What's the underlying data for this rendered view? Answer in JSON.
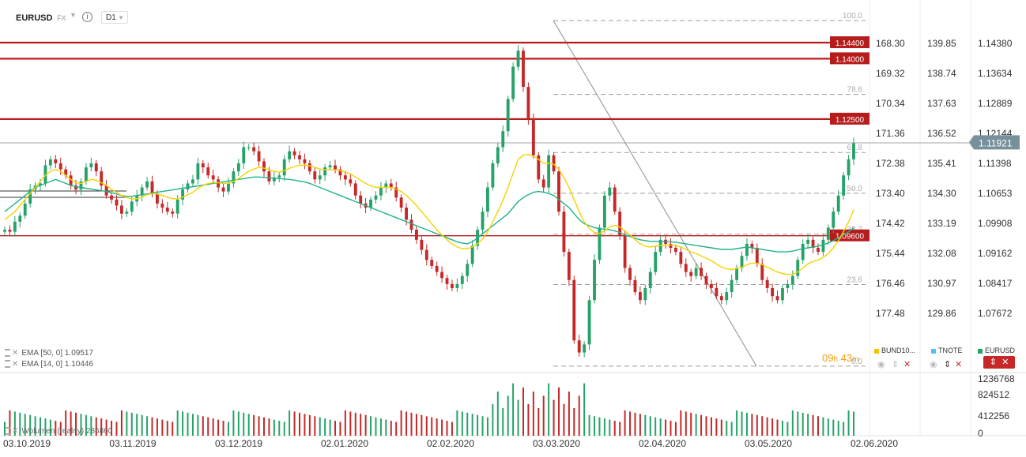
{
  "header": {
    "ticker": "EURUSD",
    "asset_class": "FX",
    "info": "i",
    "timeframe": "D1"
  },
  "indicators": [
    {
      "label": "EMA [50, 0] 1.09517"
    },
    {
      "label": "EMA [14, 0] 1.10446"
    }
  ],
  "volume_label": "Wolumen (realny) 286860",
  "timer": {
    "hours": "09",
    "h": "h",
    "minutes": "43",
    "m": "m"
  },
  "legend": [
    {
      "name": "BUND10...",
      "color": "#f5c400"
    },
    {
      "name": "TNOTE",
      "color": "#4fc3f7"
    },
    {
      "name": "EURUSD",
      "color": "#26a269"
    }
  ],
  "colors": {
    "up": "#26a269",
    "down": "#c62828",
    "ema_fast": "#f5d300",
    "ema_slow": "#20b28a",
    "hline": "#b71c1c",
    "fib": "#9e9e9e",
    "axis_text": "#333333"
  },
  "chart_data": {
    "type": "candlestick",
    "x_ticks": [
      "03.10.2019",
      "03.11.2019",
      "03.12.2019",
      "02.01.2020",
      "02.02.2020",
      "03.03.2020",
      "02.04.2020",
      "03.05.2020",
      "02.06.2020"
    ],
    "y_axis_bund": [
      "168.30",
      "169.32",
      "170.34",
      "171.36",
      "172.38",
      "173.40",
      "174.42",
      "175.44",
      "176.46",
      "177.48"
    ],
    "y_axis_tnote": [
      "139.85",
      "138.74",
      "137.63",
      "136.52",
      "135.41",
      "134.30",
      "133.19",
      "132.08",
      "130.97",
      "129.86"
    ],
    "y_axis_eurusd": [
      1.1438,
      1.13634,
      1.12889,
      1.12144,
      1.11398,
      1.10653,
      1.09908,
      1.09162,
      1.08417,
      1.07672
    ],
    "y_axis_eurusd_labels": [
      "1.14380",
      "1.13634",
      "1.12889",
      "1.12144",
      "1.11398",
      "1.10653",
      "1.09908",
      "1.09162",
      "1.08417",
      "1.07672"
    ],
    "current_price": "1.11921",
    "current_price_value": 1.11921,
    "horizontal_levels": [
      {
        "label": "1.14400",
        "value": 1.144
      },
      {
        "label": "1.14000",
        "value": 1.14
      },
      {
        "label": "1.12500",
        "value": 1.125
      },
      {
        "label": "1.09600",
        "value": 1.096
      }
    ],
    "fib_high": 1.1495,
    "fib_low": 1.0636,
    "fib_levels": [
      {
        "label": "100.0",
        "ratio": 1.0
      },
      {
        "label": "78.6",
        "ratio": 0.786
      },
      {
        "label": "61.8",
        "ratio": 0.618
      },
      {
        "label": "50.0",
        "ratio": 0.5
      },
      {
        "label": "38.2",
        "ratio": 0.382
      },
      {
        "label": "23.6",
        "ratio": 0.236
      },
      {
        "label": "0.0",
        "ratio": 0.0
      }
    ],
    "volume_axis": [
      "1236768",
      "824512",
      "412256",
      "0"
    ],
    "volume_axis_values": [
      1236768,
      824512,
      412256,
      0
    ],
    "closes": [
      1.0975,
      1.097,
      1.0995,
      1.101,
      1.104,
      1.1075,
      1.1085,
      1.109,
      1.1135,
      1.115,
      1.114,
      1.1125,
      1.111,
      1.1085,
      1.1075,
      1.1095,
      1.113,
      1.114,
      1.112,
      1.1085,
      1.106,
      1.105,
      1.1035,
      1.1015,
      1.102,
      1.1045,
      1.106,
      1.108,
      1.1095,
      1.1065,
      1.104,
      1.103,
      1.102,
      1.1015,
      1.105,
      1.1075,
      1.109,
      1.11,
      1.114,
      1.113,
      1.111,
      1.11,
      1.108,
      1.107,
      1.109,
      1.112,
      1.114,
      1.118,
      1.118,
      1.117,
      1.1145,
      1.112,
      1.1095,
      1.1105,
      1.111,
      1.115,
      1.117,
      1.116,
      1.115,
      1.114,
      1.112,
      1.11,
      1.111,
      1.113,
      1.1135,
      1.1125,
      1.111,
      1.11,
      1.109,
      1.106,
      1.104,
      1.103,
      1.105,
      1.106,
      1.108,
      1.109,
      1.108,
      1.1055,
      1.103,
      1.1,
      1.0975,
      1.095,
      1.0925,
      1.09,
      1.0885,
      1.087,
      1.0855,
      1.084,
      1.083,
      1.084,
      1.086,
      1.089,
      1.0935,
      1.0975,
      1.102,
      1.108,
      1.114,
      1.118,
      1.122,
      1.13,
      1.138,
      1.142,
      1.133,
      1.125,
      1.116,
      1.11,
      1.108,
      1.116,
      1.112,
      1.102,
      1.092,
      1.085,
      1.07,
      1.067,
      1.069,
      1.08,
      1.09,
      1.098,
      1.106,
      1.108,
      1.102,
      1.096,
      1.088,
      1.085,
      1.082,
      1.08,
      1.083,
      1.087,
      1.092,
      1.095,
      1.094,
      1.093,
      1.092,
      1.089,
      1.087,
      1.086,
      1.088,
      1.086,
      1.084,
      1.083,
      1.081,
      1.08,
      1.082,
      1.085,
      1.088,
      1.091,
      1.094,
      1.093,
      1.089,
      1.085,
      1.083,
      1.081,
      1.08,
      1.083,
      1.084,
      1.086,
      1.09,
      1.094,
      1.095,
      1.093,
      1.092,
      1.095,
      1.098,
      1.102,
      1.106,
      1.111,
      1.115,
      1.119
    ],
    "ema_slow": [
      1.102,
      1.103,
      1.104,
      1.105,
      1.106,
      1.107,
      1.108,
      1.1085,
      1.109,
      1.1095,
      1.11,
      1.1095,
      1.109,
      1.1085,
      1.1082,
      1.108,
      1.1078,
      1.1076,
      1.1074,
      1.1072,
      1.107,
      1.1067,
      1.1064,
      1.106,
      1.1058,
      1.1058,
      1.106,
      1.1062,
      1.1064,
      1.1066,
      1.1068,
      1.107,
      1.1072,
      1.1074,
      1.1076,
      1.1078,
      1.108,
      1.1082,
      1.1084,
      1.1086,
      1.1088,
      1.109,
      1.1092,
      1.1094,
      1.1096,
      1.1098,
      1.11,
      1.1102,
      1.1104,
      1.1106,
      1.1106,
      1.1105,
      1.1104,
      1.1103,
      1.1102,
      1.1101,
      1.11,
      1.1098,
      1.1096,
      1.1094,
      1.109,
      1.1085,
      1.108,
      1.1075,
      1.107,
      1.1065,
      1.106,
      1.1055,
      1.105,
      1.1045,
      1.104,
      1.1035,
      1.103,
      1.1025,
      1.102,
      1.1015,
      1.101,
      1.1005,
      1.1,
      1.0995,
      1.099,
      1.0985,
      1.098,
      1.0975,
      1.097,
      1.0965,
      1.096,
      1.0955,
      1.095,
      1.0945,
      1.0942,
      1.094,
      1.0945,
      1.0955,
      1.0965,
      1.0975,
      1.0985,
      1.0995,
      1.1005,
      1.1015,
      1.103,
      1.1045,
      1.1055,
      1.1062,
      1.1068,
      1.107,
      1.1068,
      1.1065,
      1.106,
      1.105,
      1.104,
      1.103,
      1.1015,
      1.1,
      1.099,
      1.0985,
      1.098,
      1.0978,
      1.0976,
      1.0975,
      1.0972,
      1.0968,
      1.0962,
      1.0958,
      1.0954,
      1.095,
      1.0948,
      1.0946,
      1.0946,
      1.0946,
      1.0946,
      1.0945,
      1.0944,
      1.0942,
      1.094,
      1.0938,
      1.0936,
      1.0934,
      1.0932,
      1.093,
      1.0928,
      1.0926,
      1.0926,
      1.0926,
      1.0928,
      1.093,
      1.0932,
      1.093,
      1.0928,
      1.0926,
      1.0924,
      1.0922,
      1.092,
      1.092,
      1.092,
      1.0922,
      1.0925,
      1.0928,
      1.093,
      1.0932,
      1.0934,
      1.0938,
      1.0942,
      1.0948,
      1.0955,
      1.0962,
      1.097,
      1.098
    ],
    "ema_fast": [
      1.1,
      1.101,
      1.102,
      1.1035,
      1.105,
      1.1065,
      1.108,
      1.1095,
      1.111,
      1.112,
      1.1125,
      1.112,
      1.111,
      1.11,
      1.1092,
      1.109,
      1.1095,
      1.11,
      1.1098,
      1.1092,
      1.1085,
      1.1075,
      1.1068,
      1.106,
      1.1055,
      1.1052,
      1.1052,
      1.1056,
      1.1062,
      1.1065,
      1.1064,
      1.106,
      1.1056,
      1.1052,
      1.1052,
      1.1056,
      1.1062,
      1.1068,
      1.1078,
      1.1085,
      1.109,
      1.1092,
      1.1092,
      1.109,
      1.109,
      1.1095,
      1.1102,
      1.1112,
      1.112,
      1.1126,
      1.113,
      1.1128,
      1.1124,
      1.112,
      1.1118,
      1.1122,
      1.1128,
      1.1132,
      1.1135,
      1.1136,
      1.1134,
      1.113,
      1.1126,
      1.1124,
      1.1124,
      1.1124,
      1.1122,
      1.1118,
      1.1114,
      1.1106,
      1.1098,
      1.109,
      1.1084,
      1.108,
      1.108,
      1.108,
      1.108,
      1.1076,
      1.107,
      1.106,
      1.1048,
      1.1035,
      1.102,
      1.1005,
      1.099,
      1.0975,
      1.0962,
      1.095,
      1.094,
      1.0932,
      1.0928,
      1.0928,
      1.0932,
      1.094,
      1.0952,
      1.097,
      1.0995,
      1.102,
      1.1048,
      1.108,
      1.1115,
      1.115,
      1.116,
      1.1162,
      1.1158,
      1.115,
      1.114,
      1.114,
      1.1138,
      1.1125,
      1.1105,
      1.108,
      1.105,
      1.102,
      1.0995,
      1.0978,
      1.0968,
      1.0966,
      1.0972,
      1.0982,
      1.0986,
      1.0982,
      1.0972,
      1.0962,
      1.095,
      1.094,
      1.0934,
      1.0932,
      1.0934,
      1.0936,
      1.0937,
      1.0937,
      1.0936,
      1.0932,
      1.0926,
      1.092,
      1.0916,
      1.091,
      1.0904,
      1.0898,
      1.089,
      1.0882,
      1.0878,
      1.0876,
      1.0878,
      1.0882,
      1.0888,
      1.0892,
      1.0892,
      1.0888,
      1.0882,
      1.0876,
      1.087,
      1.0866,
      1.0864,
      1.0864,
      1.087,
      1.088,
      1.089,
      1.0896,
      1.09,
      1.0906,
      1.0916,
      1.093,
      1.0948,
      1.097,
      1.0995,
      1.1025
    ]
  }
}
